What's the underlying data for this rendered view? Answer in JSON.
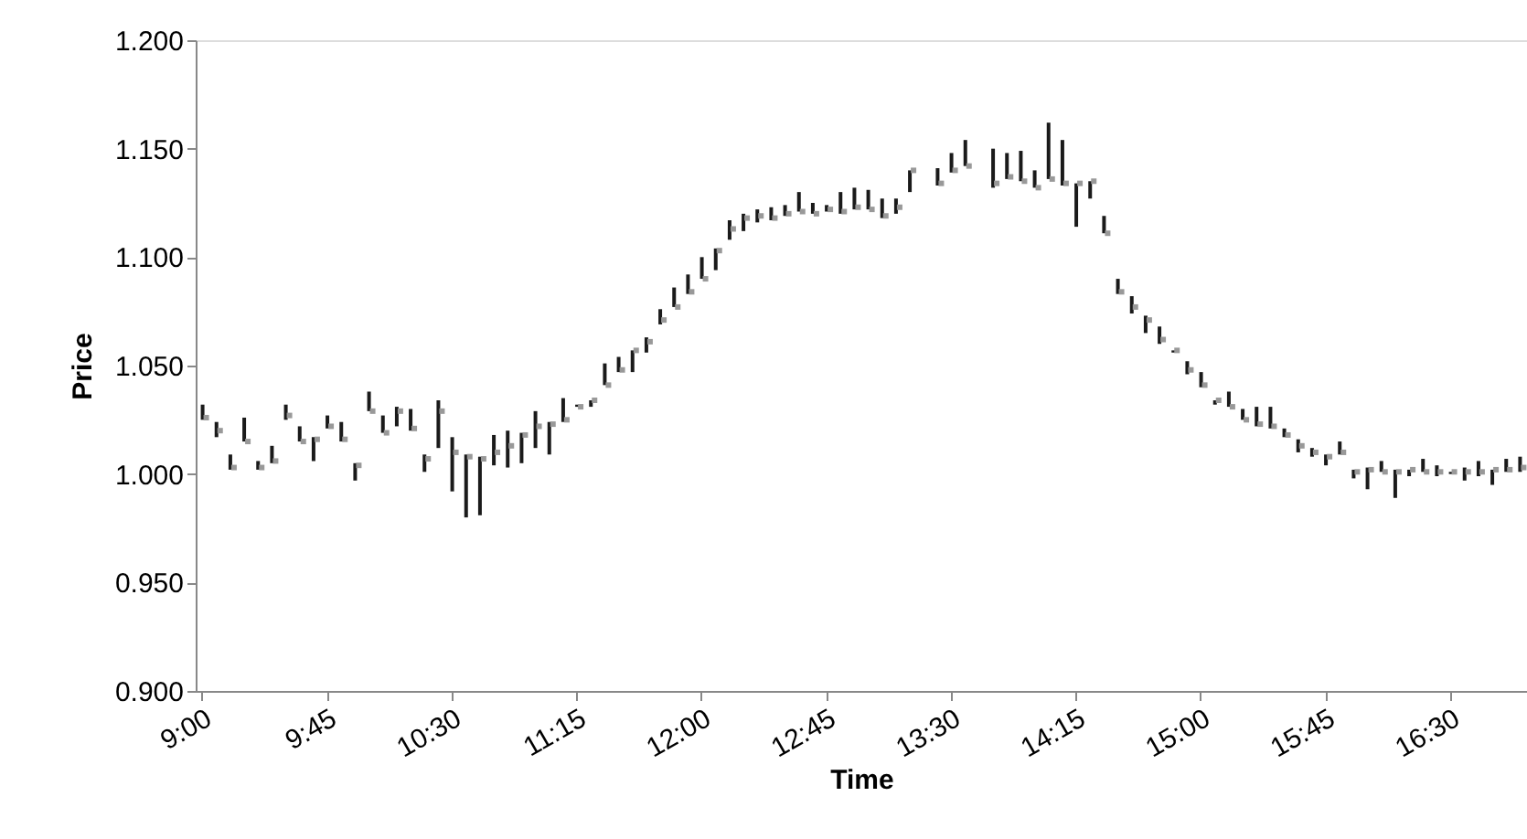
{
  "chart_data": {
    "type": "bar",
    "xlabel": "Time",
    "ylabel": "Price",
    "categories": [
      "9:00",
      null,
      null,
      null,
      null,
      null,
      null,
      null,
      null,
      "9:45",
      null,
      null,
      null,
      null,
      null,
      null,
      null,
      null,
      "10:30",
      null,
      null,
      null,
      null,
      null,
      null,
      null,
      null,
      "11:15",
      null,
      null,
      null,
      null,
      null,
      null,
      null,
      null,
      "12:00",
      null,
      null,
      null,
      null,
      null,
      null,
      null,
      null,
      "12:45",
      null,
      null,
      null,
      null,
      null,
      null,
      null,
      null,
      "13:30",
      null,
      null,
      null,
      null,
      null,
      null,
      null,
      null,
      "14:15",
      null,
      null,
      null,
      null,
      null,
      null,
      null,
      null,
      "15:00",
      null,
      null,
      null,
      null,
      null,
      null,
      null,
      null,
      "15:45",
      null,
      null,
      null,
      null,
      null,
      null,
      null,
      null,
      "16:30",
      null,
      null,
      null,
      null,
      null
    ],
    "series": [
      {
        "color": "#1a1a1a",
        "base": [
          1.025,
          1.017,
          1.002,
          1.015,
          1.002,
          1.005,
          1.025,
          1.015,
          1.006,
          1.021,
          1.015,
          0.997,
          1.029,
          1.019,
          1.022,
          1.02,
          1.001,
          1.012,
          0.992,
          0.98,
          0.981,
          1.004,
          1.003,
          1.005,
          1.012,
          1.009,
          1.024,
          1.031,
          1.031,
          1.041,
          1.047,
          1.047,
          1.056,
          1.069,
          1.077,
          1.083,
          1.09,
          1.094,
          1.108,
          1.112,
          1.116,
          1.117,
          1.119,
          1.121,
          1.12,
          1.121,
          1.12,
          1.122,
          1.122,
          1.118,
          1.12,
          1.13,
          null,
          1.133,
          1.139,
          1.142,
          null,
          1.132,
          1.136,
          1.135,
          1.132,
          1.136,
          1.133,
          1.114,
          1.127,
          1.111,
          1.083,
          1.074,
          1.065,
          1.06,
          1.056,
          1.046,
          1.04,
          1.032,
          1.031,
          1.025,
          1.022,
          1.021,
          1.017,
          1.01,
          1.008,
          1.004,
          1.009,
          0.998,
          0.993,
          1.001,
          0.989,
          0.999,
          1.001,
          0.999,
          1.0,
          0.997,
          0.999,
          0.995,
          1.001,
          1.001
        ],
        "values": [
          0.007,
          0.007,
          0.007,
          0.011,
          0.004,
          0.008,
          0.007,
          0.007,
          0.011,
          0.006,
          0.009,
          0.008,
          0.009,
          0.008,
          0.009,
          0.01,
          0.008,
          0.022,
          0.025,
          0.029,
          0.027,
          0.014,
          0.017,
          0.014,
          0.017,
          0.015,
          0.011,
          0.001,
          0.003,
          0.01,
          0.007,
          0.01,
          0.007,
          0.007,
          0.009,
          0.009,
          0.01,
          0.01,
          0.009,
          0.008,
          0.006,
          0.006,
          0.005,
          0.009,
          0.005,
          0.003,
          0.01,
          0.01,
          0.009,
          0.009,
          0.007,
          0.01,
          null,
          0.008,
          0.009,
          0.012,
          null,
          0.018,
          0.012,
          0.014,
          0.008,
          0.026,
          0.021,
          0.02,
          0.008,
          0.008,
          0.007,
          0.008,
          0.008,
          0.008,
          0.001,
          0.006,
          0.007,
          0.002,
          0.007,
          0.005,
          0.009,
          0.01,
          0.004,
          0.006,
          0.004,
          0.005,
          0.006,
          0.004,
          0.01,
          0.005,
          0.013,
          0.003,
          0.006,
          0.005,
          0.001,
          0.006,
          0.007,
          0.007,
          0.006,
          0.007
        ]
      },
      {
        "type": "scatter",
        "color": "#999999",
        "marker": "square",
        "values": [
          1.026,
          1.02,
          1.003,
          1.015,
          1.003,
          1.006,
          1.027,
          1.015,
          1.016,
          1.022,
          1.016,
          1.004,
          1.029,
          1.019,
          1.029,
          1.021,
          1.007,
          1.029,
          1.01,
          1.008,
          1.007,
          1.01,
          1.013,
          1.018,
          1.022,
          1.023,
          1.025,
          1.031,
          1.034,
          1.041,
          1.048,
          1.057,
          1.061,
          1.071,
          1.077,
          1.084,
          1.09,
          1.103,
          1.113,
          1.118,
          1.119,
          1.118,
          1.12,
          1.121,
          1.12,
          1.122,
          1.121,
          1.123,
          1.122,
          1.119,
          1.123,
          1.14,
          null,
          1.134,
          1.14,
          1.142,
          null,
          1.134,
          1.137,
          1.135,
          1.132,
          1.136,
          1.134,
          1.134,
          1.135,
          1.111,
          1.084,
          1.077,
          1.071,
          1.062,
          1.057,
          1.048,
          1.041,
          1.034,
          1.031,
          1.025,
          1.023,
          1.022,
          1.018,
          1.013,
          1.01,
          1.008,
          1.01,
          1.001,
          1.002,
          1.001,
          1.001,
          1.002,
          1.001,
          1.001,
          1.001,
          1.001,
          1.001,
          1.002,
          1.002,
          1.003
        ]
      }
    ],
    "ylim": [
      0.9,
      1.2
    ],
    "yticks": [
      {
        "value": 0.9,
        "label": "0.900"
      },
      {
        "value": 0.95,
        "label": "0.950"
      },
      {
        "value": 1.0,
        "label": "1.000"
      },
      {
        "value": 1.05,
        "label": "1.050"
      },
      {
        "value": 1.1,
        "label": "1.100"
      },
      {
        "value": 1.15,
        "label": "1.150"
      },
      {
        "value": 1.2,
        "label": "1.200"
      }
    ],
    "grid": false
  }
}
